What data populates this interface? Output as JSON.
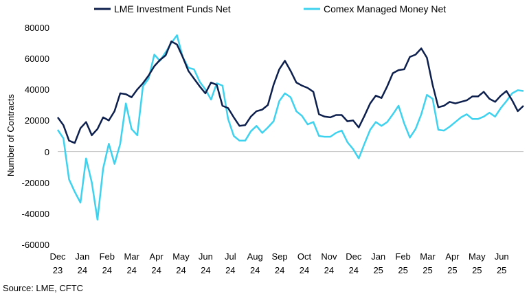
{
  "chart_data": {
    "type": "line",
    "title": "",
    "xlabel": "",
    "ylabel": "Number of Contracts",
    "ylim": [
      -60000,
      80000
    ],
    "yticks": [
      80000,
      60000,
      40000,
      20000,
      0,
      -20000,
      -40000,
      -60000
    ],
    "x_tick_labels": [
      {
        "month": "Dec",
        "year": "23"
      },
      {
        "month": "Jan",
        "year": "24"
      },
      {
        "month": "Feb",
        "year": "24"
      },
      {
        "month": "Mar",
        "year": "24"
      },
      {
        "month": "Apr",
        "year": "24"
      },
      {
        "month": "May",
        "year": "24"
      },
      {
        "month": "Jun",
        "year": "24"
      },
      {
        "month": "Jul",
        "year": "24"
      },
      {
        "month": "Aug",
        "year": "24"
      },
      {
        "month": "Sep",
        "year": "24"
      },
      {
        "month": "Oct",
        "year": "24"
      },
      {
        "month": "Nov",
        "year": "24"
      },
      {
        "month": "Dec",
        "year": "24"
      },
      {
        "month": "Jan",
        "year": "25"
      },
      {
        "month": "Feb",
        "year": "25"
      },
      {
        "month": "Mar",
        "year": "25"
      },
      {
        "month": "Apr",
        "year": "25"
      },
      {
        "month": "May",
        "year": "25"
      },
      {
        "month": "Jun",
        "year": "25"
      }
    ],
    "legend_position": "top",
    "source": "Source: LME, CFTC",
    "series": [
      {
        "name": "LME Investment Funds Net",
        "color": "#0d1f4d",
        "values": [
          22000,
          17000,
          7000,
          5500,
          15000,
          19000,
          10500,
          14500,
          22000,
          20000,
          26000,
          37500,
          37000,
          35000,
          40000,
          44000,
          49000,
          55000,
          59000,
          62000,
          71000,
          69000,
          61000,
          52000,
          47000,
          42000,
          37500,
          44500,
          43000,
          29500,
          28000,
          22000,
          16500,
          17000,
          22500,
          26000,
          27000,
          30000,
          43000,
          53000,
          58500,
          52000,
          44500,
          42500,
          41000,
          38500,
          24000,
          22500,
          22000,
          23500,
          23500,
          19500,
          20000,
          15500,
          23000,
          31000,
          36000,
          34500,
          42000,
          50500,
          52500,
          53000,
          61000,
          62500,
          66500,
          60500,
          43000,
          28500,
          29500,
          32000,
          31000,
          32000,
          33000,
          35500,
          35500,
          38500,
          34000,
          32000,
          36000,
          39000,
          33000,
          26000,
          29500
        ]
      },
      {
        "name": "Comex Managed Money Net",
        "color": "#3fd2ef",
        "values": [
          14000,
          8500,
          -18000,
          -26000,
          -33000,
          -4500,
          -20000,
          -44000,
          -11000,
          5000,
          -8000,
          5000,
          31000,
          14500,
          10500,
          42000,
          47000,
          62500,
          58500,
          64000,
          70000,
          75000,
          61000,
          54000,
          53000,
          45000,
          40000,
          33500,
          44000,
          42500,
          21000,
          10000,
          7000,
          7000,
          13000,
          16500,
          12000,
          15500,
          19500,
          32500,
          37500,
          35000,
          26000,
          23000,
          17500,
          19000,
          10000,
          9500,
          9500,
          12000,
          13500,
          6000,
          1500,
          -4500,
          5000,
          14000,
          19000,
          16500,
          19000,
          24000,
          29500,
          18000,
          9000,
          14500,
          24000,
          36500,
          34000,
          14000,
          13500,
          16000,
          19000,
          22000,
          24000,
          21000,
          21000,
          22500,
          25000,
          22500,
          28000,
          32500,
          37500,
          39500,
          39000
        ]
      }
    ]
  }
}
